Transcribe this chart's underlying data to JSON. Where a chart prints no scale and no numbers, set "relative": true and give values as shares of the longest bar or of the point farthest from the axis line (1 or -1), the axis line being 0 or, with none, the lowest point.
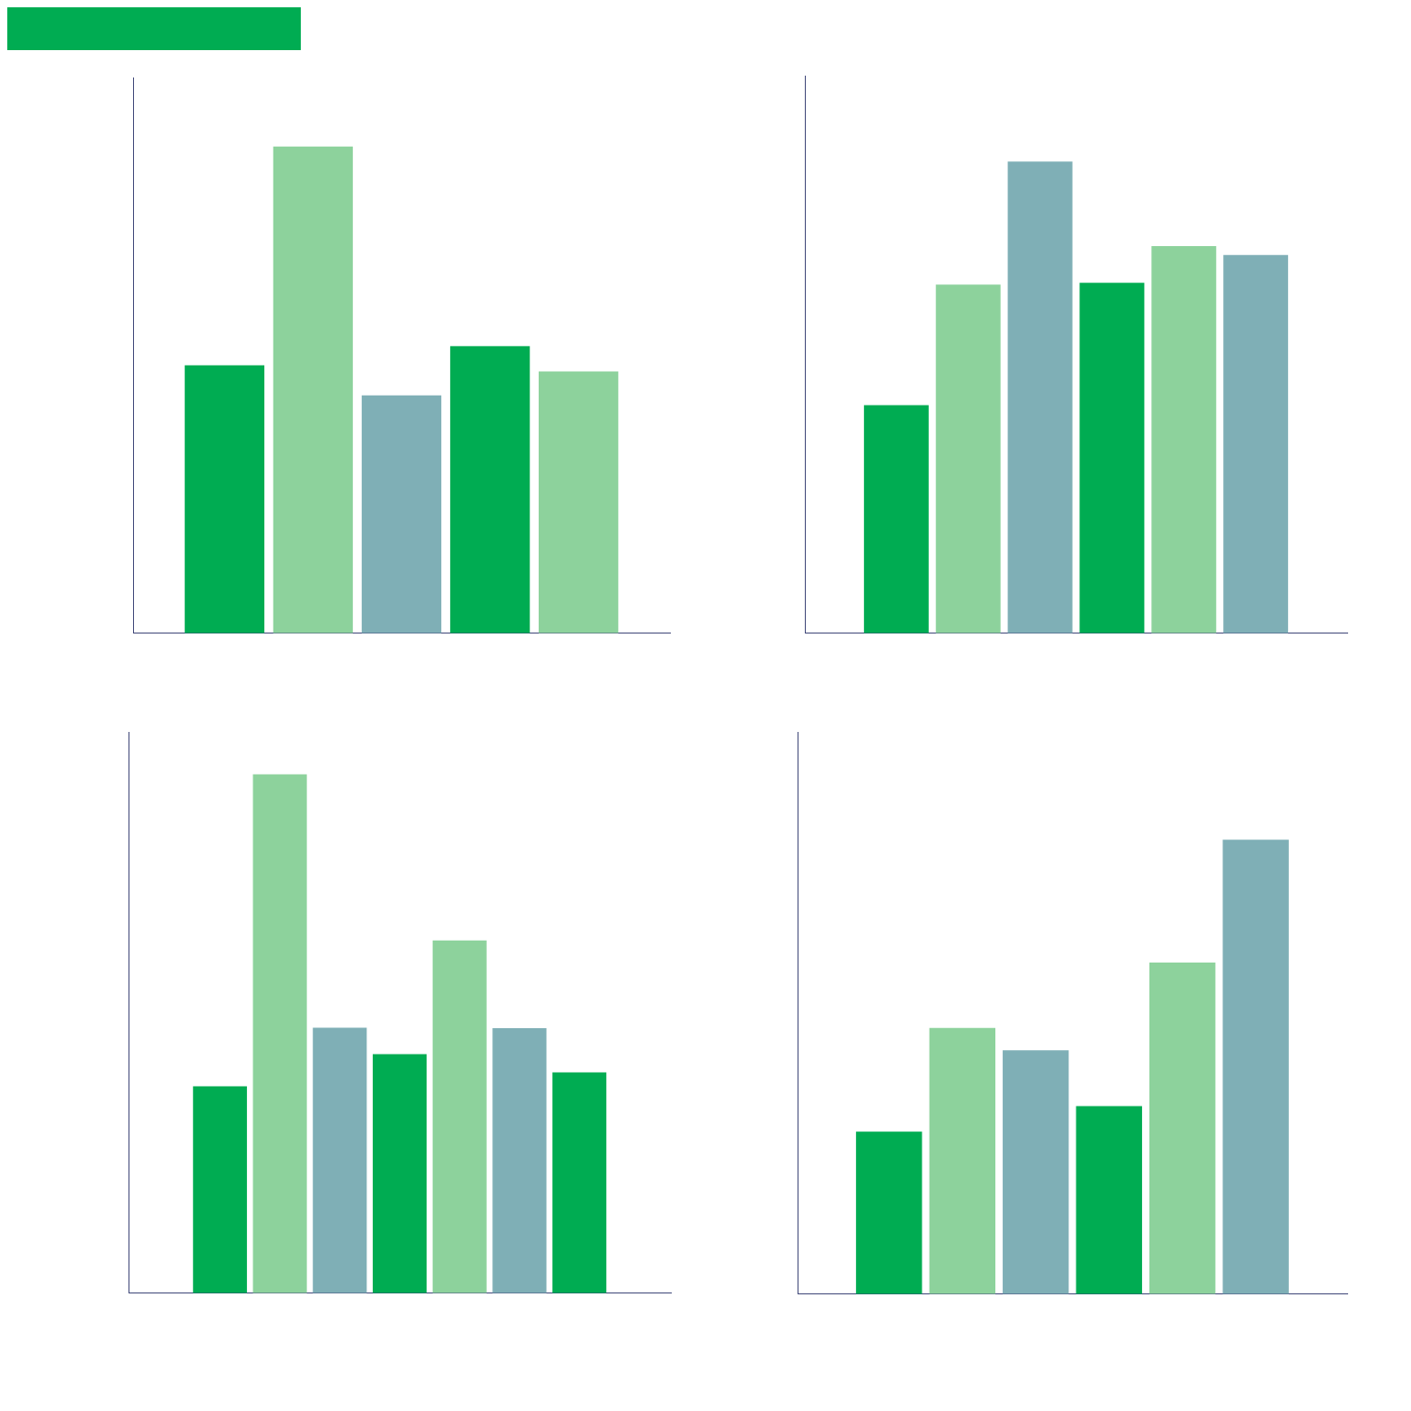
{
  "chart_data": [
    {
      "type": "bar",
      "relative": true,
      "categories": [
        null,
        null,
        null,
        null,
        null
      ],
      "values": [
        0.551,
        1,
        0.489,
        0.59,
        0.538
      ],
      "colors": [
        "#00ac52",
        "#8dd29c",
        "#7fafb6",
        "#00ac52",
        "#8dd29c"
      ]
    },
    {
      "type": "bar",
      "relative": true,
      "categories": [
        null,
        null,
        null,
        null,
        null,
        null
      ],
      "values": [
        0.484,
        0.739,
        1,
        0.743,
        0.821,
        0.802
      ],
      "colors": [
        "#00ac52",
        "#8dd29c",
        "#7fafb6",
        "#00ac52",
        "#8dd29c",
        "#7fafb6"
      ]
    },
    {
      "type": "bar",
      "relative": true,
      "categories": [
        null,
        null,
        null,
        null,
        null,
        null,
        null
      ],
      "values": [
        0.399,
        1,
        0.512,
        0.461,
        0.68,
        0.511,
        0.426
      ],
      "colors": [
        "#00ac52",
        "#8dd29c",
        "#7fafb6",
        "#00ac52",
        "#8dd29c",
        "#7fafb6",
        "#00ac52"
      ]
    },
    {
      "type": "bar",
      "relative": true,
      "categories": [
        null,
        null,
        null,
        null,
        null,
        null
      ],
      "values": [
        0.358,
        0.586,
        0.537,
        0.414,
        0.73,
        1
      ],
      "colors": [
        "#00ac52",
        "#8dd29c",
        "#7fafb6",
        "#00ac52",
        "#8dd29c",
        "#7fafb6"
      ]
    }
  ]
}
